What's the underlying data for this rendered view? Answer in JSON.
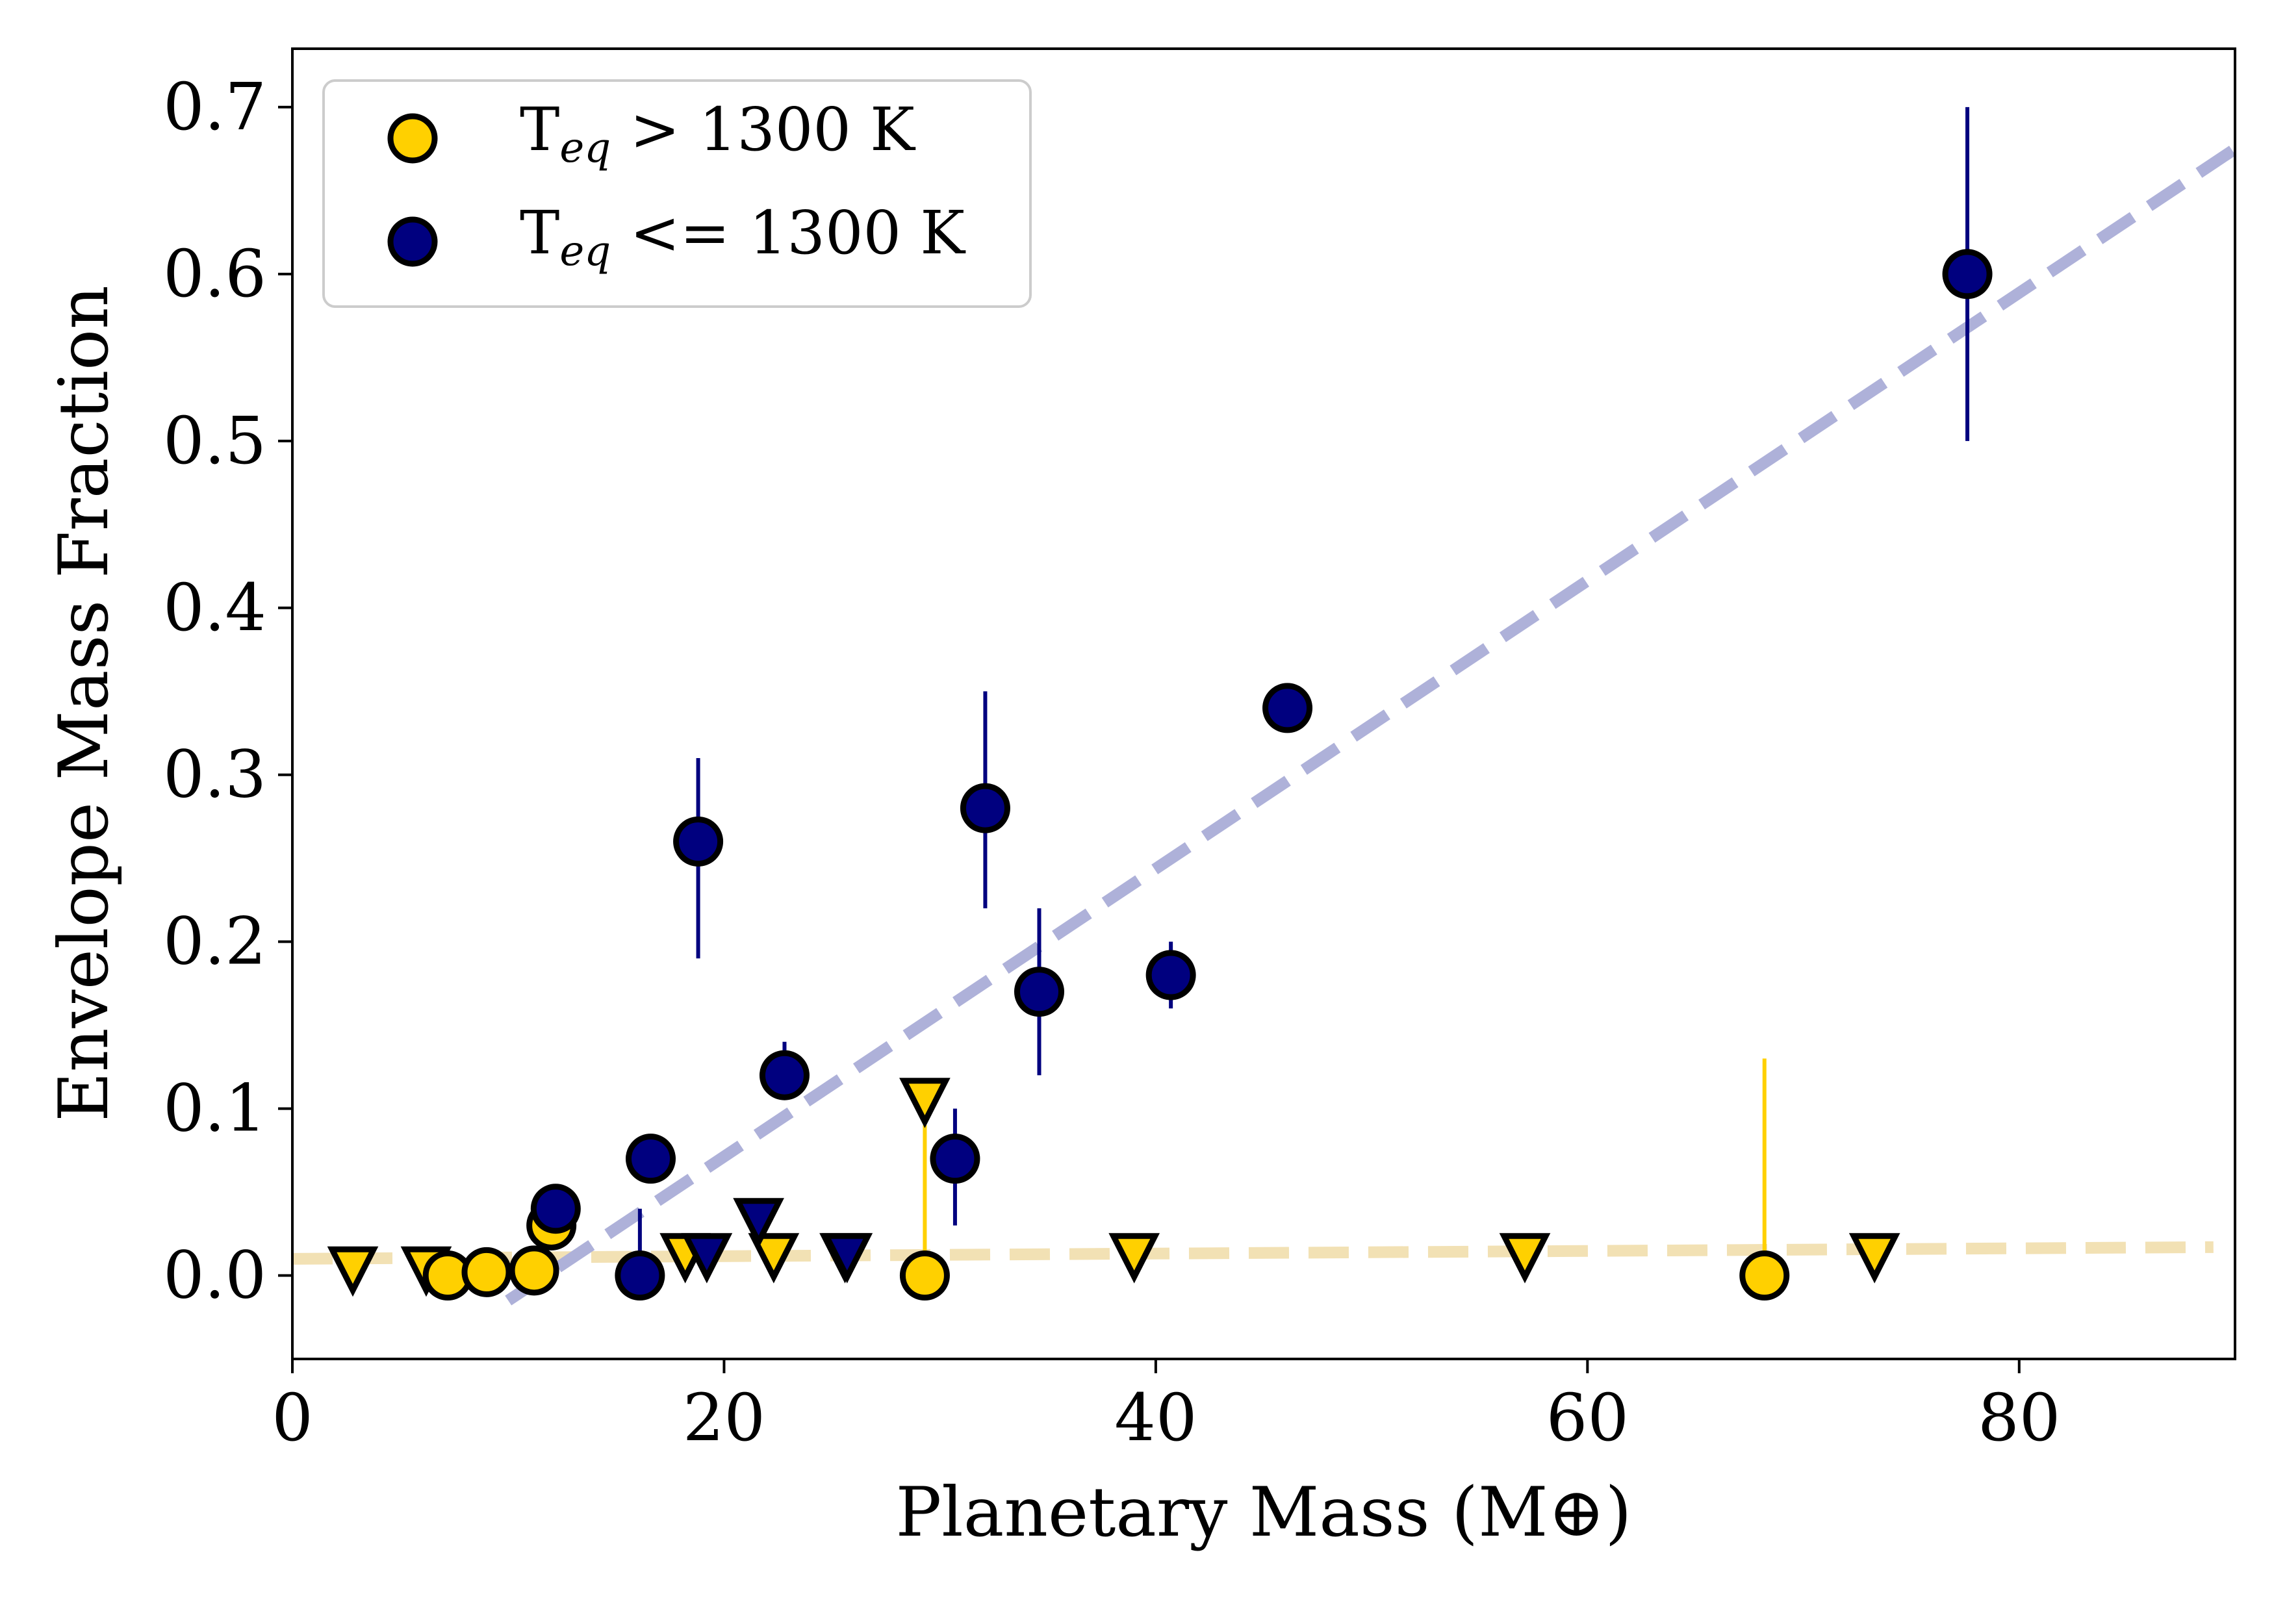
{
  "chart_data": {
    "type": "scatter",
    "xlabel": "Planetary Mass (M⊕)",
    "ylabel": "Envelope Mass Fraction",
    "xlim": [
      0,
      90
    ],
    "ylim": [
      -0.05,
      0.735
    ],
    "xticks": [
      "0",
      "20",
      "40",
      "60",
      "80"
    ],
    "yticks": [
      "0.0",
      "0.1",
      "0.2",
      "0.3",
      "0.4",
      "0.5",
      "0.6",
      "0.7"
    ],
    "grid": false,
    "legend_position": "top-left",
    "legend_entries": [
      {
        "label_main": "T",
        "label_sub": "eq",
        "label_tail": " > 1300 K"
      },
      {
        "label_main": "T",
        "label_sub": "eq",
        "label_tail": " <= 1300 K"
      }
    ],
    "colors": {
      "hot": "#FFD000",
      "cool": "#00007F",
      "hot_fit": "#F2E1B4",
      "cool_fit": "#AEB1D9",
      "edge": "#000000"
    },
    "series": [
      {
        "key": "hot",
        "measurements": [
          {
            "x": 7.2,
            "y": 0.0
          },
          {
            "x": 9.0,
            "y": 0.002
          },
          {
            "x": 11.2,
            "y": 0.003
          },
          {
            "x": 12.0,
            "y": 0.03
          },
          {
            "x": 29.3,
            "y": 0.0,
            "err_low": 0.0,
            "err_high": 0.09
          },
          {
            "x": 68.2,
            "y": 0.0,
            "err_low": 0.0,
            "err_high": 0.13
          }
        ],
        "upper_limits": [
          {
            "x": 2.8,
            "y": 0.004
          },
          {
            "x": 6.2,
            "y": 0.004
          },
          {
            "x": 18.2,
            "y": 0.012
          },
          {
            "x": 22.3,
            "y": 0.012
          },
          {
            "x": 25.6,
            "y": 0.012
          },
          {
            "x": 29.3,
            "y": 0.105
          },
          {
            "x": 39.0,
            "y": 0.012
          },
          {
            "x": 57.1,
            "y": 0.012
          },
          {
            "x": 73.3,
            "y": 0.012
          }
        ],
        "fit": {
          "x": [
            0,
            89
          ],
          "y": [
            0.01,
            0.017
          ]
        }
      },
      {
        "key": "cool",
        "measurements": [
          {
            "x": 12.2,
            "y": 0.04
          },
          {
            "x": 16.1,
            "y": 0.0,
            "err_low": 0.0,
            "err_high": 0.04
          },
          {
            "x": 16.6,
            "y": 0.07
          },
          {
            "x": 18.8,
            "y": 0.26,
            "err_low": 0.07,
            "err_high": 0.05
          },
          {
            "x": 22.8,
            "y": 0.12,
            "err_low": 0.0,
            "err_high": 0.02
          },
          {
            "x": 30.7,
            "y": 0.07,
            "err_low": 0.04,
            "err_high": 0.03
          },
          {
            "x": 32.1,
            "y": 0.28,
            "err_low": 0.06,
            "err_high": 0.07
          },
          {
            "x": 34.6,
            "y": 0.17,
            "err_low": 0.05,
            "err_high": 0.05
          },
          {
            "x": 40.7,
            "y": 0.18,
            "err_low": 0.02,
            "err_high": 0.02
          },
          {
            "x": 46.1,
            "y": 0.34
          },
          {
            "x": 77.6,
            "y": 0.6,
            "err_low": 0.1,
            "err_high": 0.1
          }
        ],
        "upper_limits": [
          {
            "x": 19.2,
            "y": 0.012
          },
          {
            "x": 21.6,
            "y": 0.033
          },
          {
            "x": 25.7,
            "y": 0.012
          }
        ],
        "fit": {
          "x": [
            10,
            90
          ],
          "y": [
            -0.015,
            0.675
          ]
        }
      }
    ]
  }
}
